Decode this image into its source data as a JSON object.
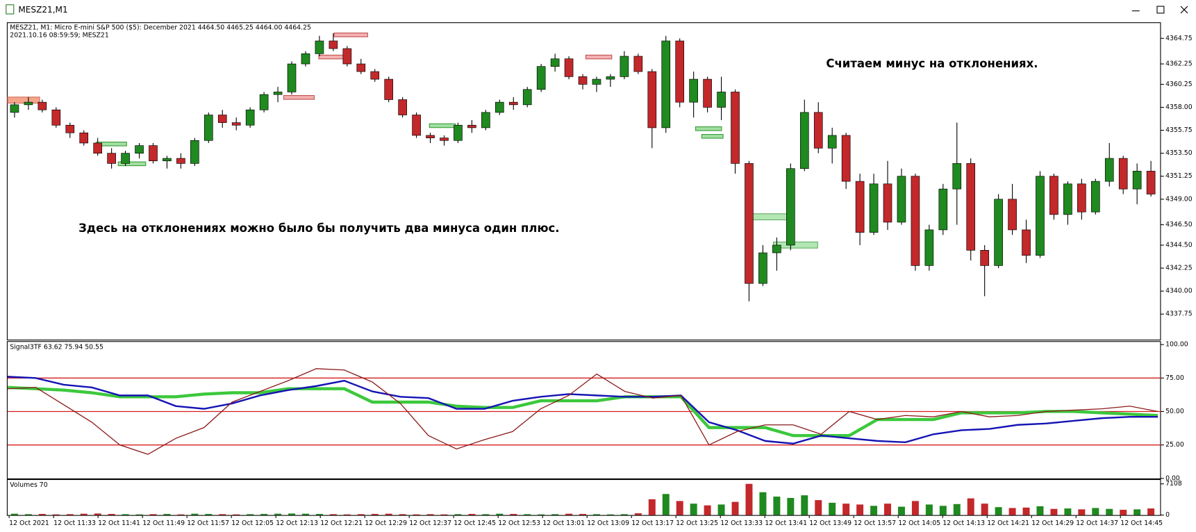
{
  "window": {
    "title": "MESZ21,M1"
  },
  "chart_data": [
    {
      "type": "candlestick",
      "info": [
        "MESZ21, M1:  Micro E-mini S&P 500 ($5): December 2021  4464.50 4465.25 4464.00 4464.25",
        "2021.10.16 08:59:59; MESZ21"
      ],
      "annotations": [
        "Считаем минус на отклонениях.",
        "Здесь на отклонениях можно было бы получить два минуса один плюс."
      ],
      "up_color": "#1f8a1f",
      "down_color": "#c3282b",
      "open": [
        4357.5,
        4358.25,
        4358.5,
        4357.75,
        4356.25,
        4355.5,
        4354.5,
        4353.5,
        4352.5,
        4353.5,
        4354.25,
        4352.75,
        4353,
        4352.5,
        4354.75,
        4357.25,
        4356.5,
        4356.25,
        4357.75,
        4359.25,
        4359.5,
        4362.25,
        4363.25,
        4364.5,
        4363.75,
        4362.25,
        4361.5,
        4360.75,
        4358.75,
        4357.25,
        4355.25,
        4355,
        4354.75,
        4356.25,
        4356,
        4357.5,
        4358.5,
        4358.25,
        4359.75,
        4362,
        4362.75,
        4361,
        4360.25,
        4360.75,
        4361,
        4363,
        4361.5,
        4356,
        4364.5,
        4358.5,
        4360.75,
        4358,
        4359.5,
        4352.5,
        4340.75,
        4343.75,
        4344.5,
        4352,
        4357.5,
        4354,
        4355.25,
        4350.75,
        4345.75,
        4350.5,
        4346.75,
        4351.25,
        4342.5,
        4346,
        4350,
        4352.5,
        4344,
        4342.5,
        4349,
        4346,
        4343.5,
        4351.25,
        4347.5,
        4350.5,
        4347.75,
        4350.75,
        4353,
        4350,
        4351.75
      ],
      "high": [
        4358.5,
        4359,
        4358.75,
        4358,
        4356.5,
        4355.75,
        4355,
        4354,
        4353.75,
        4354.5,
        4354.5,
        4353.25,
        4353.5,
        4355,
        4357.5,
        4357.75,
        4357,
        4358,
        4359.5,
        4360,
        4362.5,
        4363.5,
        4365,
        4365.25,
        4364,
        4362.75,
        4361.75,
        4361,
        4359,
        4357.5,
        4355.5,
        4355.25,
        4356.5,
        4356.75,
        4357.75,
        4358.75,
        4359,
        4360,
        4362.25,
        4363.25,
        4363,
        4361.25,
        4361,
        4361.25,
        4363.5,
        4363.25,
        4361.75,
        4365,
        4364.75,
        4361.5,
        4361,
        4361,
        4359.75,
        4352.75,
        4344.5,
        4345.25,
        4352.5,
        4358.75,
        4358.5,
        4356,
        4355.5,
        4351.5,
        4351.5,
        4352.75,
        4352,
        4351.5,
        4346.5,
        4350.5,
        4356.5,
        4353,
        4344.5,
        4349.5,
        4350.5,
        4347,
        4351.75,
        4351.5,
        4350.75,
        4351,
        4351,
        4354.5,
        4353.25,
        4352.5,
        4352.75
      ],
      "low": [
        4357,
        4357.75,
        4357.5,
        4356,
        4355,
        4354.25,
        4353.25,
        4352,
        4352.25,
        4353,
        4352.5,
        4352,
        4352,
        4352.25,
        4354.5,
        4356,
        4355.75,
        4356,
        4357.5,
        4358.5,
        4359.25,
        4362,
        4363,
        4363.5,
        4362,
        4361.25,
        4360.5,
        4358.5,
        4357,
        4355,
        4354.5,
        4354.25,
        4354.5,
        4355.5,
        4355.75,
        4357.25,
        4357.75,
        4358,
        4359.5,
        4361.5,
        4360.75,
        4359.75,
        4359.5,
        4360,
        4360.75,
        4361.25,
        4354,
        4355.5,
        4358,
        4357,
        4357.5,
        4356.75,
        4351.5,
        4339,
        4340.5,
        4342,
        4344,
        4351.75,
        4353.5,
        4352.5,
        4350,
        4344.5,
        4345.5,
        4346,
        4346.5,
        4342,
        4342,
        4345.5,
        4346.5,
        4343,
        4339.5,
        4342.25,
        4345.5,
        4342.75,
        4343.25,
        4347,
        4346.5,
        4347,
        4347.5,
        4350.25,
        4349.5,
        4348.5,
        4349.25
      ],
      "close": [
        4358.25,
        4358.5,
        4357.75,
        4356.25,
        4355.5,
        4354.5,
        4353.5,
        4352.5,
        4353.5,
        4354.25,
        4352.75,
        4353,
        4352.5,
        4354.75,
        4357.25,
        4356.5,
        4356.25,
        4357.75,
        4359.25,
        4359.5,
        4362.25,
        4363.25,
        4364.5,
        4363.75,
        4362.25,
        4361.5,
        4360.75,
        4358.75,
        4357.25,
        4355.25,
        4355,
        4354.75,
        4356.25,
        4356,
        4357.5,
        4358.5,
        4358.25,
        4359.75,
        4362,
        4362.75,
        4361,
        4360.25,
        4360.75,
        4361,
        4363,
        4361.5,
        4356,
        4364.5,
        4358.5,
        4360.75,
        4358,
        4359.5,
        4352.5,
        4340.75,
        4343.75,
        4344.5,
        4352,
        4357.5,
        4354,
        4355.25,
        4350.75,
        4345.75,
        4350.5,
        4346.75,
        4351.25,
        4342.5,
        4346,
        4350,
        4352.5,
        4344,
        4342.5,
        4349,
        4346,
        4343.5,
        4351.25,
        4347.5,
        4350.5,
        4347.75,
        4350.75,
        4353,
        4350,
        4351.75,
        4349.5
      ],
      "ylim": [
        4335.25,
        4366.25
      ],
      "yticks": [
        {
          "value": 4364.75,
          "label": "4364.75"
        },
        {
          "value": 4362.25,
          "label": "4362.25"
        },
        {
          "value": 4360.25,
          "label": "4360.25"
        },
        {
          "value": 4358,
          "label": "4358.00"
        },
        {
          "value": 4355.75,
          "label": "4355.75"
        },
        {
          "value": 4353.5,
          "label": "4353.50"
        },
        {
          "value": 4351.25,
          "label": "4351.25"
        },
        {
          "value": 4349,
          "label": "4349.00"
        },
        {
          "value": 4346.5,
          "label": "4346.50"
        },
        {
          "value": 4344.5,
          "label": "4344.50"
        },
        {
          "value": 4342.25,
          "label": "4342.25"
        },
        {
          "value": 4340,
          "label": "4340.00"
        },
        {
          "value": 4337.75,
          "label": "4337.75"
        }
      ]
    },
    {
      "type": "line",
      "title": "Signal3TF 63.62 75.94 50.55",
      "series": [
        {
          "color": "#3cc83c",
          "width": 4,
          "values": [
            68,
            67,
            66,
            64,
            61,
            61,
            61,
            63,
            64,
            64,
            67,
            67,
            67,
            57,
            57,
            57,
            54,
            53,
            53,
            58,
            58,
            58,
            61,
            61,
            61,
            38,
            38,
            38,
            32,
            32,
            32,
            44,
            44,
            44,
            49,
            49,
            49,
            50,
            50,
            49,
            48,
            47
          ]
        },
        {
          "color": "#1414b4",
          "width": 2.2,
          "values": [
            76,
            75,
            70,
            68,
            62,
            62,
            54,
            52,
            56,
            62,
            66,
            69,
            73,
            65,
            61,
            60,
            52,
            52,
            58,
            61,
            63,
            62,
            61,
            61,
            62,
            42,
            36,
            28,
            26,
            32,
            30,
            28,
            27,
            33,
            36,
            37,
            40,
            41,
            43,
            45,
            46,
            46
          ]
        },
        {
          "color": "#8b1a1a",
          "width": 1.2,
          "values": [
            67,
            68,
            55,
            42,
            25,
            18,
            30,
            38,
            57,
            65,
            73,
            82,
            81,
            72,
            56,
            32,
            22,
            29,
            35,
            52,
            62,
            78,
            65,
            60,
            62,
            25,
            35,
            40,
            40,
            33,
            50,
            44,
            47,
            46,
            50,
            46,
            47,
            50,
            51,
            52,
            54,
            50
          ]
        }
      ],
      "levels": [
        75,
        50,
        25
      ],
      "level_color": "#d41e1e",
      "ylim": [
        0,
        102
      ],
      "yticks": [
        {
          "value": 100,
          "label": "100.00"
        },
        {
          "value": 75,
          "label": "75.00"
        },
        {
          "value": 50,
          "label": "50.00"
        },
        {
          "value": 25,
          "label": "25.00"
        },
        {
          "value": 0,
          "label": "0.00"
        }
      ]
    },
    {
      "type": "bar",
      "title": "Volumes 70",
      "values": [
        300,
        200,
        250,
        150,
        200,
        300,
        350,
        250,
        200,
        150,
        200,
        250,
        150,
        300,
        250,
        200,
        150,
        200,
        250,
        300,
        350,
        300,
        250,
        200,
        150,
        200,
        250,
        300,
        200,
        150,
        200,
        150,
        200,
        250,
        200,
        300,
        250,
        200,
        150,
        200,
        300,
        250,
        200,
        150,
        200,
        400,
        3600,
        4800,
        3200,
        2600,
        2200,
        2400,
        3000,
        7108,
        5200,
        4200,
        3900,
        4500,
        3400,
        2800,
        2600,
        2400,
        2100,
        2600,
        1900,
        3200,
        2400,
        2100,
        2500,
        3800,
        2600,
        1800,
        1600,
        1700,
        2000,
        1400,
        1500,
        1300,
        1600,
        1400,
        1200,
        1300,
        1500
      ],
      "ylim": [
        0,
        8000
      ],
      "yticks": [
        7108,
        0
      ],
      "xtick_labels": [
        "12 Oct 2021",
        "12 Oct 11:33",
        "12 Oct 11:41",
        "12 Oct 11:49",
        "12 Oct 11:57",
        "12 Oct 12:05",
        "12 Oct 12:13",
        "12 Oct 12:21",
        "12 Oct 12:29",
        "12 Oct 12:37",
        "12 Oct 12:45",
        "12 Oct 12:53",
        "12 Oct 13:01",
        "12 Oct 13:09",
        "12 Oct 13:17",
        "12 Oct 13:25",
        "12 Oct 13:33",
        "12 Oct 13:41",
        "12 Oct 13:49",
        "12 Oct 13:57",
        "12 Oct 14:05",
        "12 Oct 14:13",
        "12 Oct 14:21",
        "12 Oct 14:29",
        "12 Oct 14:37",
        "12 Oct 14:45"
      ]
    }
  ]
}
